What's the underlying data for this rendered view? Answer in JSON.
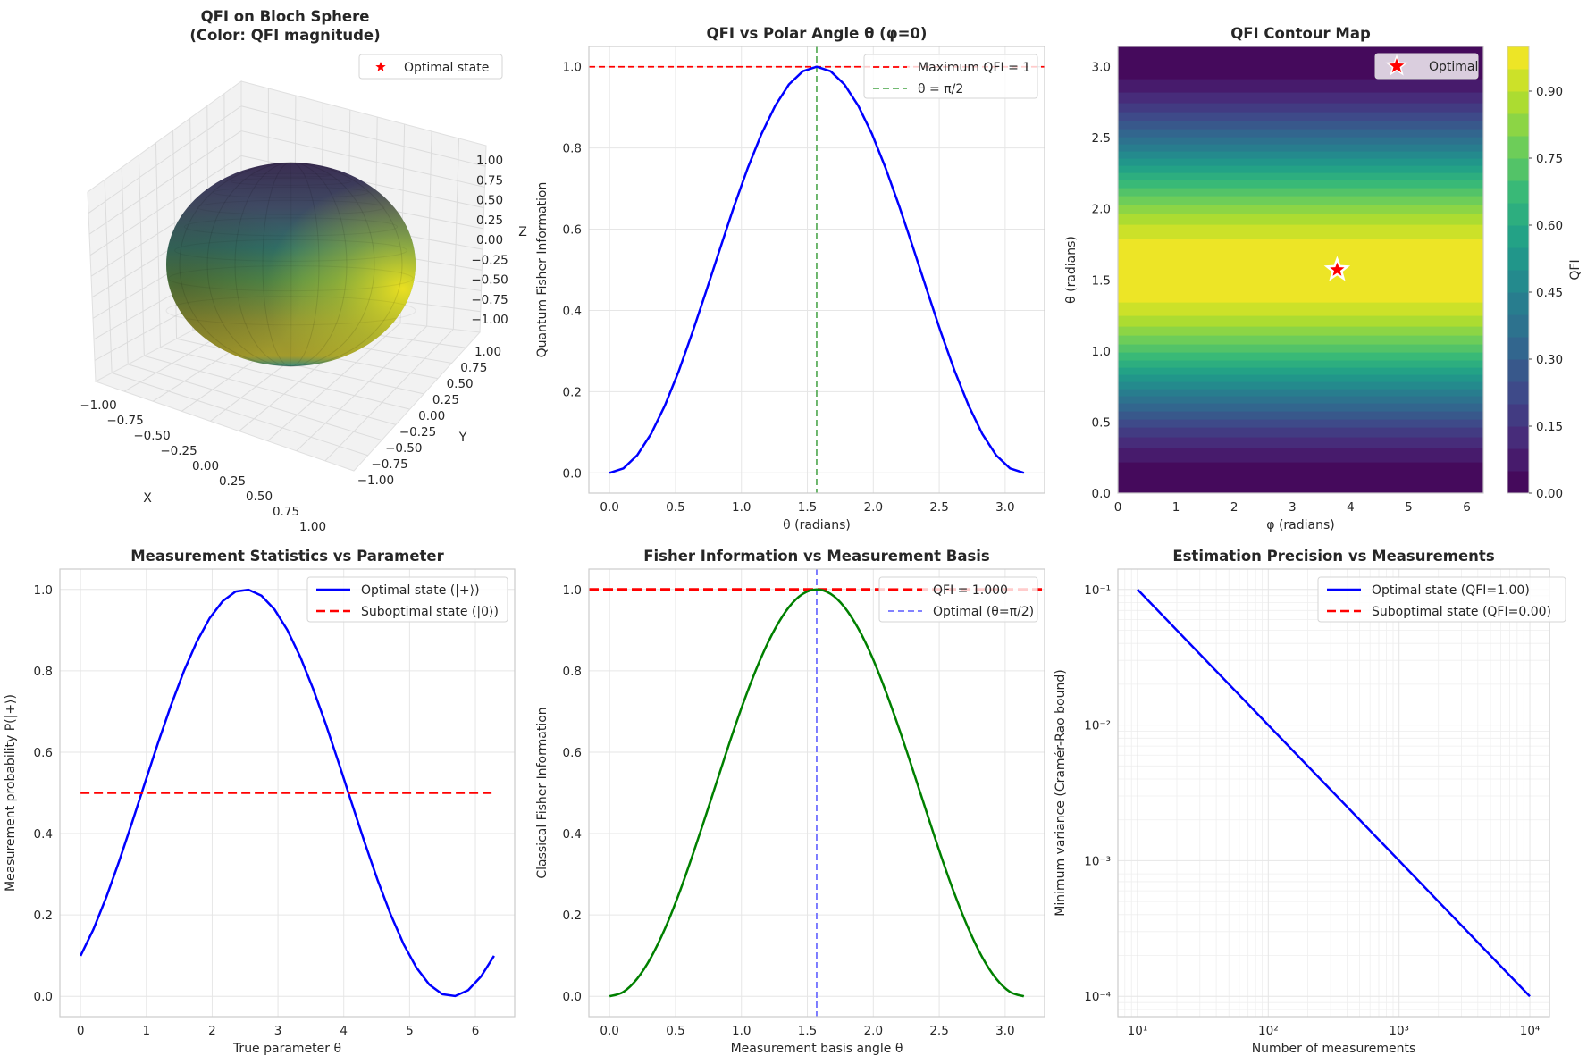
{
  "chart_data": [
    {
      "type": "surface3d",
      "title_lines": [
        "QFI on Bloch Sphere",
        "(Color: QFI magnitude)"
      ],
      "xlabel": "X",
      "ylabel": "Y",
      "zlabel": "Z",
      "xlim": [
        -1,
        1
      ],
      "ylim": [
        -1,
        1
      ],
      "zlim": [
        -1,
        1
      ],
      "x_ticks": [
        "−1.00",
        "−0.75",
        "−0.50",
        "−0.25",
        "0.00",
        "0.25",
        "0.50",
        "0.75",
        "1.00"
      ],
      "y_ticks": [
        "1.00",
        "0.75",
        "0.50",
        "0.25",
        "0.00",
        "−0.25",
        "−0.50",
        "−0.75",
        "−1.00"
      ],
      "z_ticks": [
        "1.00",
        "0.75",
        "0.50",
        "0.25",
        "0.00",
        "−0.25",
        "−0.50",
        "−0.75",
        "−1.00"
      ],
      "colormap": "viridis",
      "legend": [
        {
          "label": "Optimal state",
          "marker": "star",
          "color": "#ff0000"
        }
      ],
      "legend_position": "upper right"
    },
    {
      "type": "line",
      "title": "QFI vs Polar Angle θ (φ=0)",
      "xlabel": "θ (radians)",
      "ylabel": "Quantum Fisher Information",
      "xlim": [
        -0.157,
        3.299
      ],
      "ylim": [
        -0.05,
        1.05
      ],
      "grid": true,
      "x_ticks": [
        {
          "v": 0,
          "label": "0.0"
        },
        {
          "v": 0.5,
          "label": "0.5"
        },
        {
          "v": 1,
          "label": "1.0"
        },
        {
          "v": 1.5,
          "label": "1.5"
        },
        {
          "v": 2,
          "label": "2.0"
        },
        {
          "v": 2.5,
          "label": "2.5"
        },
        {
          "v": 3,
          "label": "3.0"
        }
      ],
      "y_ticks": [
        {
          "v": 0,
          "label": "0.0"
        },
        {
          "v": 0.2,
          "label": "0.2"
        },
        {
          "v": 0.4,
          "label": "0.4"
        },
        {
          "v": 0.6,
          "label": "0.6"
        },
        {
          "v": 0.8,
          "label": "0.8"
        },
        {
          "v": 1,
          "label": "1.0"
        }
      ],
      "series": [
        {
          "color": "#0000ff",
          "x": [
            0,
            0.105,
            0.209,
            0.314,
            0.419,
            0.524,
            0.628,
            0.733,
            0.838,
            0.942,
            1.047,
            1.152,
            1.257,
            1.361,
            1.466,
            1.571,
            1.676,
            1.78,
            1.885,
            1.99,
            2.094,
            2.199,
            2.304,
            2.409,
            2.513,
            2.618,
            2.723,
            2.827,
            2.932,
            3.037,
            3.142
          ],
          "y": [
            0,
            0.0109,
            0.0432,
            0.0955,
            0.1654,
            0.25,
            0.3455,
            0.4477,
            0.5523,
            0.6545,
            0.75,
            0.8346,
            0.9045,
            0.9568,
            0.9891,
            1.0,
            0.9891,
            0.9568,
            0.9045,
            0.8346,
            0.75,
            0.6545,
            0.5523,
            0.4477,
            0.3455,
            0.25,
            0.1654,
            0.0955,
            0.0432,
            0.0109,
            0
          ]
        }
      ],
      "hlines": [
        {
          "y": 1.0,
          "color": "#ff0000",
          "style": "dashed",
          "name": "Maximum QFI = 1"
        }
      ],
      "vlines": [
        {
          "x": 1.5708,
          "color": "#5fb05f",
          "style": "dashed",
          "name": "θ = π/2"
        }
      ],
      "legend_position": "upper right"
    },
    {
      "type": "contourf",
      "title": "QFI Contour Map",
      "xlabel": "φ (radians)",
      "ylabel": "θ (radians)",
      "xlim": [
        0,
        6.283
      ],
      "ylim": [
        0,
        3.1416
      ],
      "x_ticks": [
        {
          "v": 0,
          "label": "0"
        },
        {
          "v": 1,
          "label": "1"
        },
        {
          "v": 2,
          "label": "2"
        },
        {
          "v": 3,
          "label": "3"
        },
        {
          "v": 4,
          "label": "4"
        },
        {
          "v": 5,
          "label": "5"
        },
        {
          "v": 6,
          "label": "6"
        }
      ],
      "y_ticks": [
        {
          "v": 0,
          "label": "0.0"
        },
        {
          "v": 0.5,
          "label": "0.5"
        },
        {
          "v": 1,
          "label": "1.0"
        },
        {
          "v": 1.5,
          "label": "1.5"
        },
        {
          "v": 2,
          "label": "2.0"
        },
        {
          "v": 2.5,
          "label": "2.5"
        },
        {
          "v": 3,
          "label": "3.0"
        }
      ],
      "theta": [
        0,
        0.105,
        0.209,
        0.314,
        0.419,
        0.524,
        0.628,
        0.733,
        0.838,
        0.942,
        1.047,
        1.152,
        1.257,
        1.361,
        1.466,
        1.571,
        1.676,
        1.78,
        1.885,
        1.99,
        2.094,
        2.199,
        2.304,
        2.409,
        2.513,
        2.618,
        2.723,
        2.827,
        2.932,
        3.037,
        3.142
      ],
      "qfi": [
        0,
        0.0109,
        0.0432,
        0.0955,
        0.1654,
        0.25,
        0.3455,
        0.4477,
        0.5523,
        0.6545,
        0.75,
        0.8346,
        0.9045,
        0.9568,
        0.9891,
        1.0,
        0.9891,
        0.9568,
        0.9045,
        0.8346,
        0.75,
        0.6545,
        0.5523,
        0.4477,
        0.3455,
        0.25,
        0.1654,
        0.0955,
        0.0432,
        0.0109,
        0
      ],
      "levels": [
        0,
        0.05,
        0.1,
        0.15,
        0.2,
        0.25,
        0.3,
        0.35,
        0.4,
        0.45,
        0.5,
        0.55,
        0.6,
        0.65,
        0.7,
        0.75,
        0.8,
        0.85,
        0.9,
        0.95,
        1.0
      ],
      "colormap": "viridis",
      "colorbar": {
        "label": "QFI",
        "range": [
          0,
          1.0
        ],
        "ticks": [
          "0.00",
          "0.15",
          "0.30",
          "0.45",
          "0.60",
          "0.75",
          "0.90"
        ]
      },
      "optimal_point": {
        "phi": 3.77,
        "theta": 1.5708,
        "marker": "star",
        "color": "#ff0000",
        "edge": "#ffffff"
      },
      "legend": [
        {
          "label": "Optimal"
        }
      ],
      "legend_position": "upper right"
    },
    {
      "type": "line",
      "title": "Measurement Statistics vs Parameter",
      "xlabel": "True parameter θ",
      "ylabel": "Measurement probability P(|+⟩)",
      "xlim": [
        -0.314,
        6.597
      ],
      "ylim": [
        -0.05,
        1.05
      ],
      "grid": true,
      "x_ticks": [
        {
          "v": 0,
          "label": "0"
        },
        {
          "v": 1,
          "label": "1"
        },
        {
          "v": 2,
          "label": "2"
        },
        {
          "v": 3,
          "label": "3"
        },
        {
          "v": 4,
          "label": "4"
        },
        {
          "v": 5,
          "label": "5"
        },
        {
          "v": 6,
          "label": "6"
        }
      ],
      "y_ticks": [
        {
          "v": 0,
          "label": "0.0"
        },
        {
          "v": 0.2,
          "label": "0.2"
        },
        {
          "v": 0.4,
          "label": "0.4"
        },
        {
          "v": 0.6,
          "label": "0.6"
        },
        {
          "v": 0.8,
          "label": "0.8"
        },
        {
          "v": 1,
          "label": "1.0"
        }
      ],
      "series": [
        {
          "name": "Optimal state (|+⟩)",
          "color": "#0000ff",
          "style": "solid",
          "x": [
            0,
            0.196,
            0.393,
            0.589,
            0.785,
            0.982,
            1.178,
            1.374,
            1.571,
            1.767,
            1.963,
            2.16,
            2.356,
            2.553,
            2.749,
            2.945,
            3.142,
            3.338,
            3.534,
            3.731,
            3.927,
            4.123,
            4.32,
            4.516,
            4.712,
            4.909,
            5.105,
            5.301,
            5.498,
            5.694,
            5.89,
            6.087,
            6.283
          ],
          "y": [
            0.0994,
            0.1647,
            0.2443,
            0.3332,
            0.4282,
            0.5263,
            0.623,
            0.7151,
            0.7993,
            0.8716,
            0.9296,
            0.9713,
            0.9948,
            0.9993,
            0.9846,
            0.9513,
            0.9004,
            0.8345,
            0.7556,
            0.6669,
            0.5716,
            0.4739,
            0.3768,
            0.2846,
            0.2012,
            0.128,
            0.0701,
            0.0285,
            0.0051,
            0.0007,
            0.0151,
            0.0491,
            0.0994
          ]
        },
        {
          "name": "Suboptimal state (|0⟩)",
          "color": "#ff0000",
          "style": "dashed",
          "x": [
            0,
            6.283
          ],
          "y": [
            0.5,
            0.5
          ]
        }
      ],
      "legend_position": "upper right"
    },
    {
      "type": "line",
      "title": "Fisher Information vs Measurement Basis",
      "xlabel": "Measurement basis angle θ",
      "ylabel": "Classical Fisher Information",
      "xlim": [
        -0.157,
        3.299
      ],
      "ylim": [
        -0.05,
        1.05
      ],
      "grid": true,
      "x_ticks": [
        {
          "v": 0,
          "label": "0.0"
        },
        {
          "v": 0.5,
          "label": "0.5"
        },
        {
          "v": 1,
          "label": "1.0"
        },
        {
          "v": 1.5,
          "label": "1.5"
        },
        {
          "v": 2,
          "label": "2.0"
        },
        {
          "v": 2.5,
          "label": "2.5"
        },
        {
          "v": 3,
          "label": "3.0"
        }
      ],
      "y_ticks": [
        {
          "v": 0,
          "label": "0.0"
        },
        {
          "v": 0.2,
          "label": "0.2"
        },
        {
          "v": 0.4,
          "label": "0.4"
        },
        {
          "v": 0.6,
          "label": "0.6"
        },
        {
          "v": 0.8,
          "label": "0.8"
        },
        {
          "v": 1,
          "label": "1.0"
        }
      ],
      "series": [
        {
          "color": "#008000",
          "smooth": true,
          "x": [
            0,
            0.105,
            0.209,
            0.314,
            0.419,
            0.524,
            0.628,
            0.733,
            0.838,
            0.942,
            1.047,
            1.152,
            1.257,
            1.361,
            1.466,
            1.571,
            1.676,
            1.78,
            1.885,
            1.99,
            2.094,
            2.199,
            2.304,
            2.409,
            2.513,
            2.618,
            2.723,
            2.827,
            2.932,
            3.037,
            3.142
          ],
          "y": [
            0,
            0.0109,
            0.0432,
            0.0955,
            0.1654,
            0.25,
            0.3455,
            0.4477,
            0.5523,
            0.6545,
            0.75,
            0.8346,
            0.9045,
            0.9568,
            0.9891,
            1.0,
            0.9891,
            0.9568,
            0.9045,
            0.8346,
            0.75,
            0.6545,
            0.5523,
            0.4477,
            0.3455,
            0.25,
            0.1654,
            0.0955,
            0.0432,
            0.0109,
            0
          ]
        }
      ],
      "hlines": [
        {
          "y": 1.0,
          "color": "#ff0000",
          "style": "dashed",
          "thick": true,
          "name": "QFI = 1.000"
        }
      ],
      "vlines": [
        {
          "x": 1.5708,
          "color": "#7070ff",
          "style": "dashed",
          "name": "Optimal (θ=π/2)"
        }
      ],
      "legend_position": "upper right"
    },
    {
      "type": "line",
      "title": "Estimation Precision vs Measurements",
      "xlabel": "Number of measurements",
      "ylabel": "Minimum variance (Cramér-Rao bound)",
      "xscale": "log",
      "yscale": "log",
      "xlim": [
        7.08,
        14125
      ],
      "ylim": [
        7.08e-05,
        0.1413
      ],
      "grid": true,
      "x_ticks": [
        {
          "v": 10,
          "label": "10¹"
        },
        {
          "v": 100,
          "label": "10²"
        },
        {
          "v": 1000,
          "label": "10³"
        },
        {
          "v": 10000,
          "label": "10⁴"
        }
      ],
      "y_ticks": [
        {
          "v": 0.1,
          "label": "10⁻¹"
        },
        {
          "v": 0.01,
          "label": "10⁻²"
        },
        {
          "v": 0.001,
          "label": "10⁻³"
        },
        {
          "v": 0.0001,
          "label": "10⁻⁴"
        }
      ],
      "series": [
        {
          "name": "Optimal state (QFI=1.00)",
          "color": "#0000ff",
          "style": "solid",
          "x": [
            10,
            100,
            1000,
            10000
          ],
          "y": [
            0.1,
            0.01,
            0.001,
            0.0001
          ]
        },
        {
          "name": "Suboptimal state (QFI=0.00)",
          "color": "#ff0000",
          "style": "dashed",
          "x": [],
          "y": []
        }
      ],
      "legend_position": "upper right"
    }
  ]
}
